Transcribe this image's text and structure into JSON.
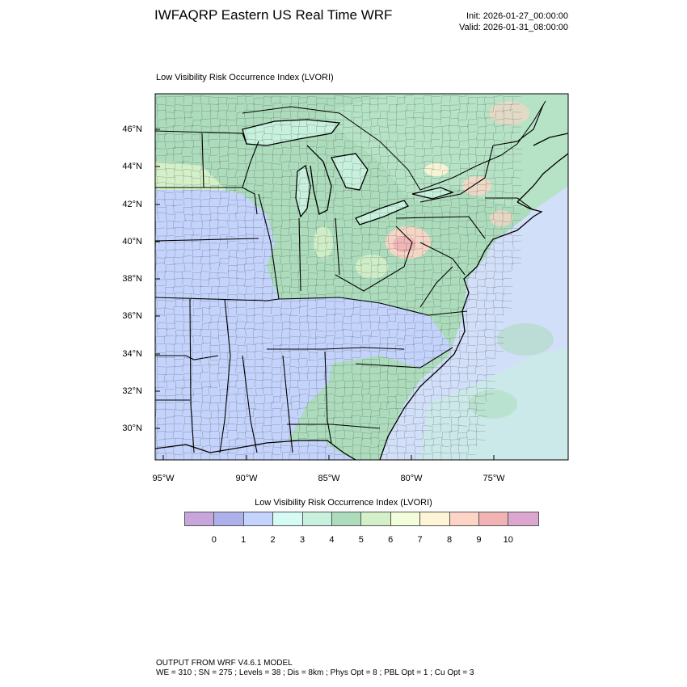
{
  "header": {
    "title": "IWFAQRP Eastern US Real Time WRF",
    "init": "Init: 2026-01-27_00:00:00",
    "valid": "Valid: 2026-01-31_08:00:00"
  },
  "map": {
    "subtitle": "Low Visibility Risk Occurrence Index   (LVORI)",
    "lat_labels": [
      "46°N",
      "44°N",
      "42°N",
      "40°N",
      "38°N",
      "36°N",
      "34°N",
      "32°N",
      "30°N"
    ],
    "lon_labels": [
      "95°W",
      "90°W",
      "85°W",
      "80°W",
      "75°W"
    ]
  },
  "colorbar": {
    "title": "Low Visibility Risk Occurrence Index  (LVORI)",
    "colors": [
      "#c7a6dc",
      "#aeb0ec",
      "#c4d3fb",
      "#d5fbf4",
      "#c7f1dc",
      "#acdcbc",
      "#d3f0c8",
      "#f2fdda",
      "#fef4d6",
      "#fdd4c6",
      "#f1b3b4",
      "#dda6cf"
    ],
    "ticks": [
      "0",
      "1",
      "2",
      "3",
      "4",
      "5",
      "6",
      "7",
      "8",
      "9",
      "10"
    ]
  },
  "footer": {
    "line1": "OUTPUT FROM WRF V4.6.1 MODEL",
    "line2": "WE = 310 ; SN = 275 ; Levels = 38 ; Dis = 8km ; Phys Opt = 8 ; PBL Opt = 1 ; Cu Opt = 3"
  }
}
